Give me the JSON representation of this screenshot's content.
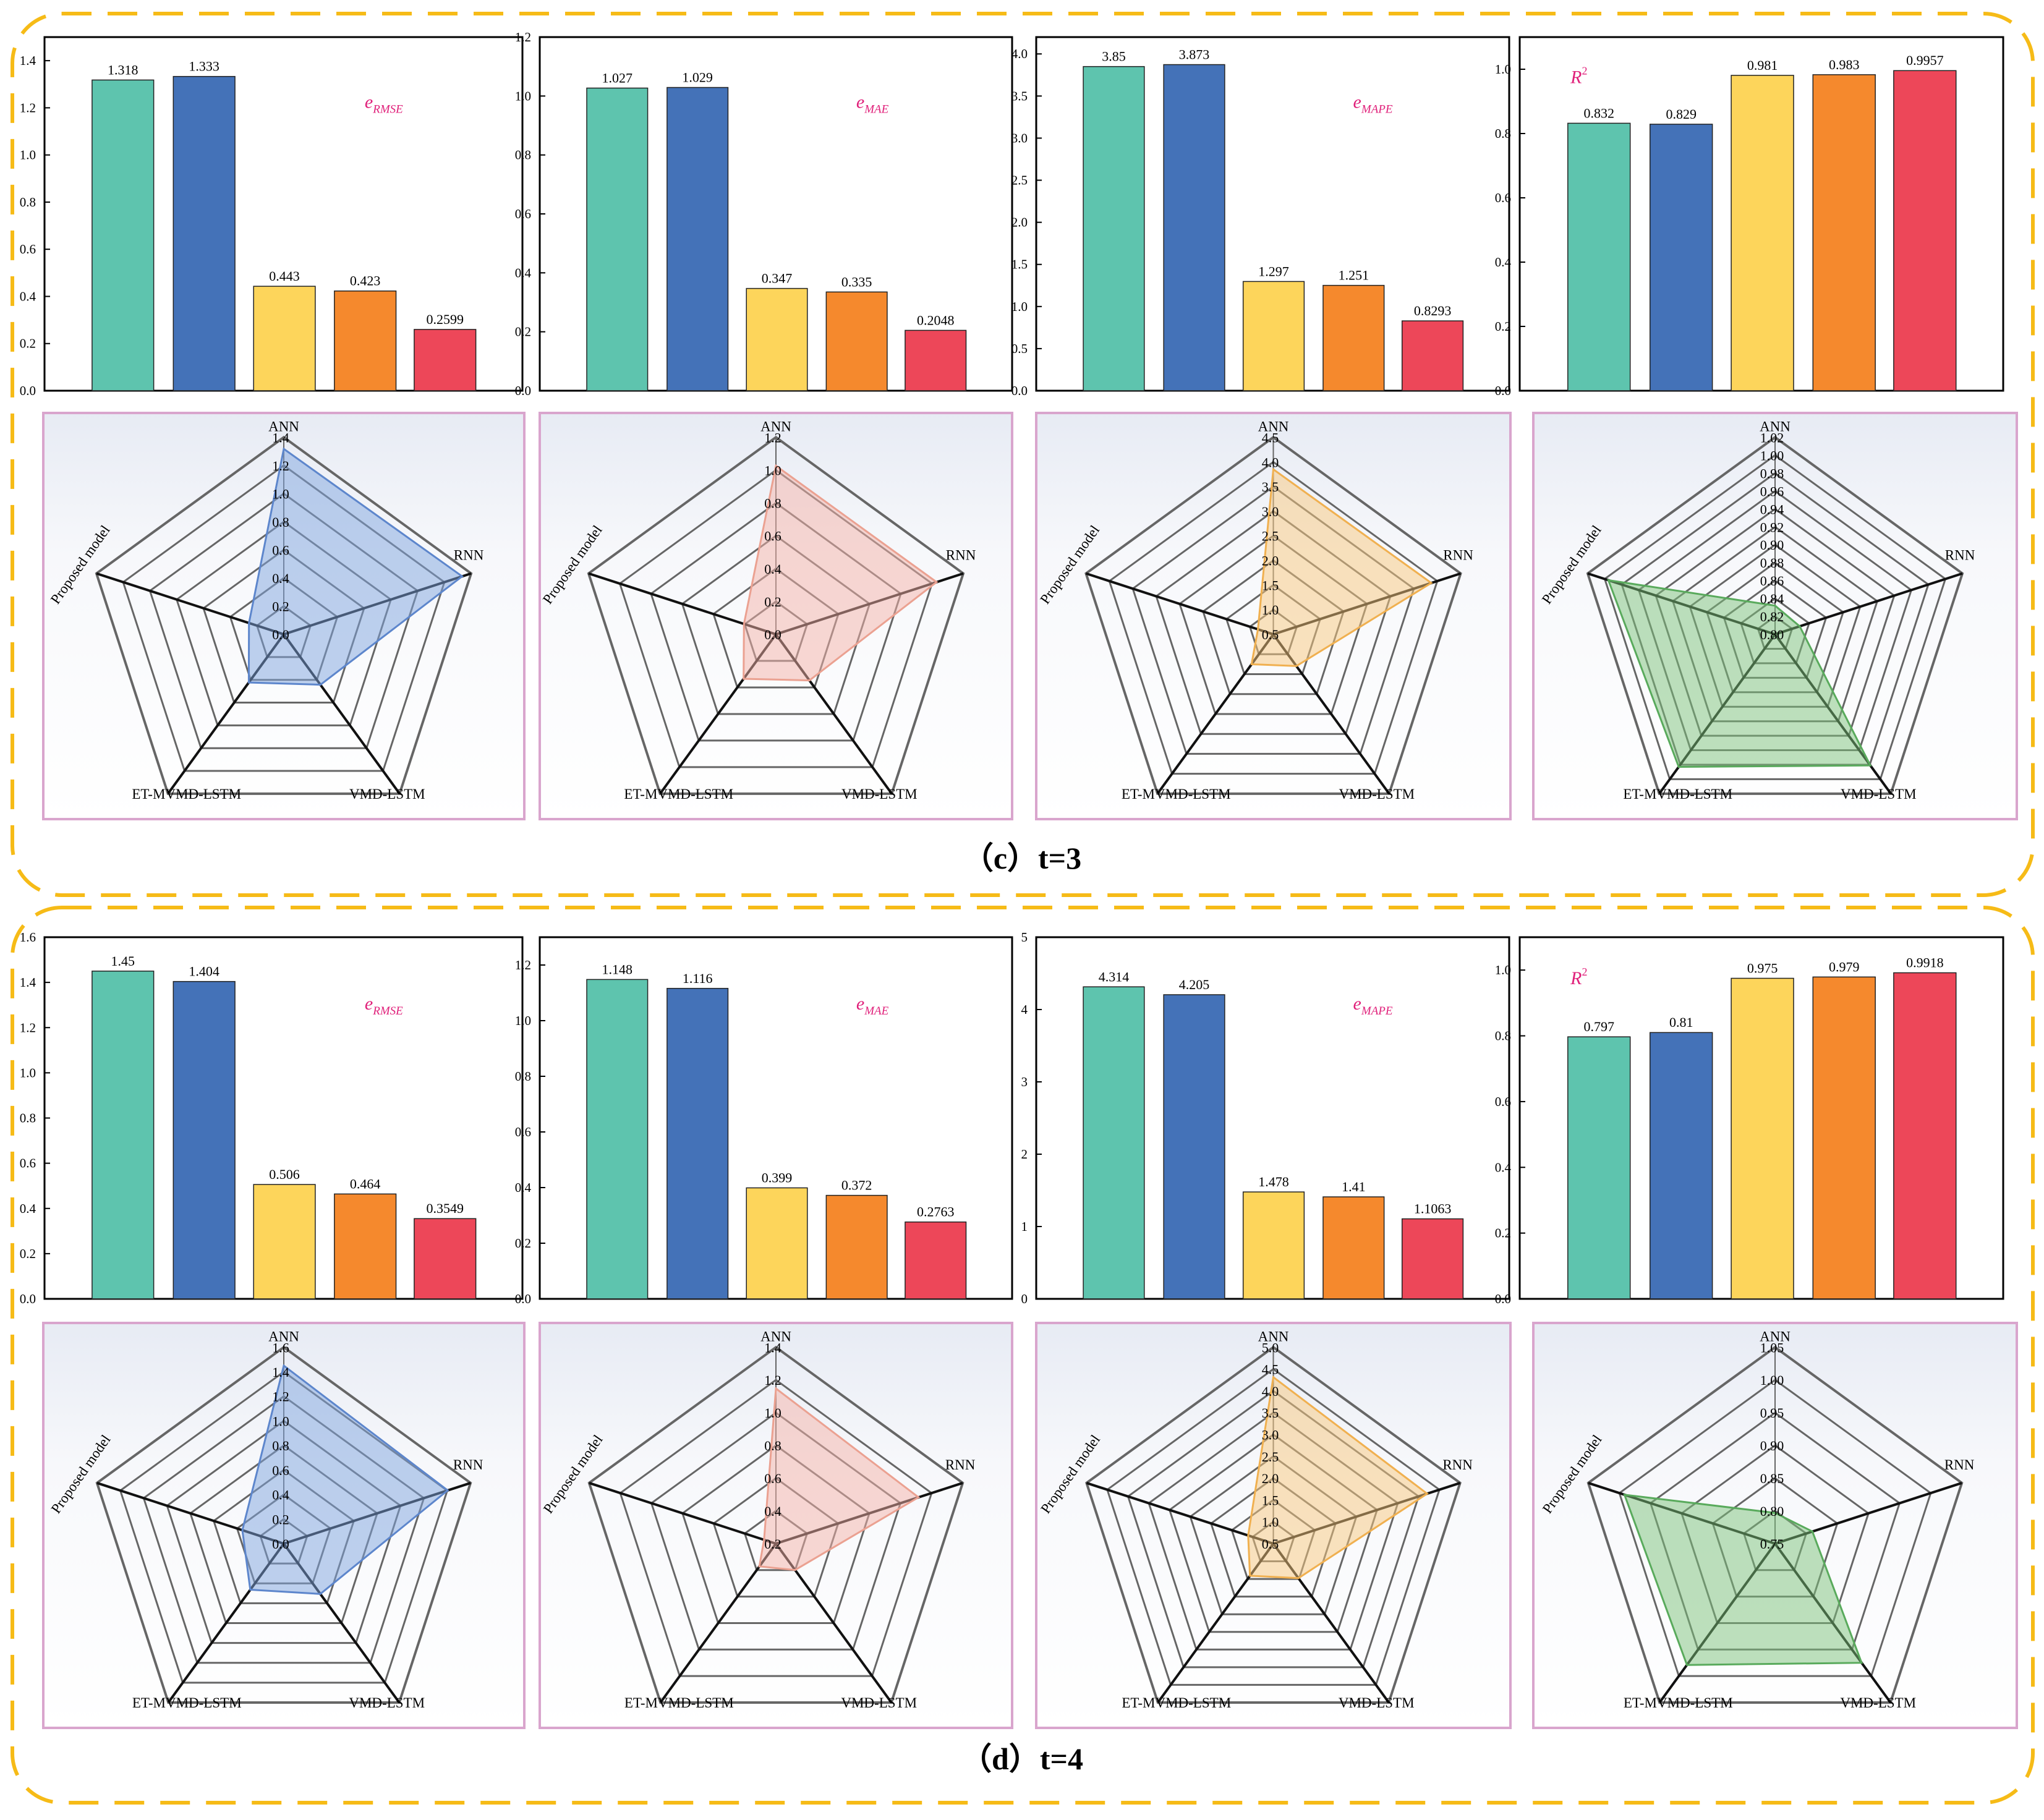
{
  "labels": {
    "metrics": {
      "rmse": "RMSE",
      "mae": "MAE",
      "mape": "MAPE"
    },
    "e": "e",
    "r": "R",
    "sup": "2",
    "models": [
      "ANN",
      "RNN",
      "VMD-LSTM",
      "ET-MVMD-LSTM",
      "Proposed model"
    ]
  },
  "colors": {
    "bars": [
      "#5ec4ae",
      "#4472b8",
      "#fdd55b",
      "#f5892d",
      "#ed4759"
    ],
    "radar_fill": [
      "#7da3dd",
      "#f3b2a7",
      "#f8c77d",
      "#7bc27a"
    ],
    "radar_line": [
      "#5d86cc",
      "#eba191",
      "#f0b050",
      "#59aa5c"
    ],
    "metric_text": "#e0207a",
    "group_border": "#f6bb17",
    "panel_border": "#d9a5cd"
  },
  "groups": [
    {
      "caption": "（c）t=3",
      "charts": [
        {
          "type": "bar",
          "metric": "rmse",
          "title": "eRMSE",
          "ylim": [
            0,
            1.5
          ],
          "yticks": [
            "0.0",
            "0.2",
            "0.4",
            "0.6",
            "0.8",
            "1.0",
            "1.2",
            "1.4"
          ],
          "values": [
            1.318,
            1.333,
            0.443,
            0.423,
            0.2599
          ],
          "value_labels": [
            "1.318",
            "1.333",
            "0.443",
            "0.423",
            "0.2599"
          ],
          "radar": {
            "rmin": 0,
            "rmax": 1.4,
            "ticks": [
              "0.0",
              "0.2",
              "0.4",
              "0.6",
              "0.8",
              "1.0",
              "1.2",
              "1.4"
            ]
          }
        },
        {
          "type": "bar",
          "metric": "mae",
          "title": "eMAE",
          "ylim": [
            0,
            1.2
          ],
          "yticks": [
            "0.0",
            "0.2",
            "0.4",
            "0.6",
            "0.8",
            "1.0",
            "1.2"
          ],
          "values": [
            1.027,
            1.029,
            0.347,
            0.335,
            0.2048
          ],
          "value_labels": [
            "1.027",
            "1.029",
            "0.347",
            "0.335",
            "0.2048"
          ],
          "radar": {
            "rmin": 0,
            "rmax": 1.2,
            "ticks": [
              "0.0",
              "0.2",
              "0.4",
              "0.6",
              "0.8",
              "1.0",
              "1.2"
            ]
          }
        },
        {
          "type": "bar",
          "metric": "mape",
          "title": "eMAPE",
          "ylim": [
            0,
            4.2
          ],
          "yticks": [
            "0.0",
            "0.5",
            "1.0",
            "1.5",
            "2.0",
            "2.5",
            "3.0",
            "3.5",
            "4.0"
          ],
          "values": [
            3.85,
            3.873,
            1.297,
            1.251,
            0.8293
          ],
          "value_labels": [
            "3.85",
            "3.873",
            "1.297",
            "1.251",
            "0.8293"
          ],
          "radar": {
            "rmin": 0.5,
            "rmax": 4.5,
            "ticks": [
              "0.5",
              "1.0",
              "1.5",
              "2.0",
              "2.5",
              "3.0",
              "3.5",
              "4.0",
              "4.5"
            ]
          }
        },
        {
          "type": "bar",
          "metric": "r2",
          "title": "R2",
          "ylim": [
            0,
            1.1
          ],
          "yticks": [
            "0.0",
            "0.2",
            "0.4",
            "0.6",
            "0.8",
            "1.0"
          ],
          "values": [
            0.832,
            0.829,
            0.981,
            0.983,
            0.9957
          ],
          "value_labels": [
            "0.832",
            "0.829",
            "0.981",
            "0.983",
            "0.9957"
          ],
          "radar": {
            "rmin": 0.8,
            "rmax": 1.02,
            "ticks": [
              "0.80",
              "0.82",
              "0.84",
              "0.86",
              "0.88",
              "0.90",
              "0.92",
              "0.94",
              "0.96",
              "0.98",
              "1.00",
              "1.02"
            ]
          }
        }
      ]
    },
    {
      "caption": "（d）t=4",
      "charts": [
        {
          "type": "bar",
          "metric": "rmse",
          "title": "eRMSE",
          "ylim": [
            0,
            1.6
          ],
          "yticks": [
            "0.0",
            "0.2",
            "0.4",
            "0.6",
            "0.8",
            "1.0",
            "1.2",
            "1.4",
            "1.6"
          ],
          "values": [
            1.45,
            1.404,
            0.506,
            0.464,
            0.3549
          ],
          "value_labels": [
            "1.45",
            "1.404",
            "0.506",
            "0.464",
            "0.3549"
          ],
          "radar": {
            "rmin": 0,
            "rmax": 1.6,
            "ticks": [
              "0.0",
              "0.2",
              "0.4",
              "0.6",
              "0.8",
              "1.0",
              "1.2",
              "1.4",
              "1.6"
            ]
          }
        },
        {
          "type": "bar",
          "metric": "mae",
          "title": "eMAE",
          "ylim": [
            0,
            1.3
          ],
          "yticks": [
            "0.0",
            "0.2",
            "0.4",
            "0.6",
            "0.8",
            "1.0",
            "1.2"
          ],
          "values": [
            1.148,
            1.116,
            0.399,
            0.372,
            0.2763
          ],
          "value_labels": [
            "1.148",
            "1.116",
            "0.399",
            "0.372",
            "0.2763"
          ],
          "radar": {
            "rmin": 0.2,
            "rmax": 1.4,
            "ticks": [
              "0.2",
              "0.4",
              "0.6",
              "0.8",
              "1.0",
              "1.2",
              "1.4"
            ]
          }
        },
        {
          "type": "bar",
          "metric": "mape",
          "title": "eMAPE",
          "ylim": [
            0,
            5
          ],
          "yticks": [
            "0",
            "1",
            "2",
            "3",
            "4",
            "5"
          ],
          "values": [
            4.314,
            4.205,
            1.478,
            1.41,
            1.1063
          ],
          "value_labels": [
            "4.314",
            "4.205",
            "1.478",
            "1.41",
            "1.1063"
          ],
          "radar": {
            "rmin": 0.5,
            "rmax": 5.0,
            "ticks": [
              "0.5",
              "1.0",
              "1.5",
              "2.0",
              "2.5",
              "3.0",
              "3.5",
              "4.0",
              "4.5",
              "5.0"
            ]
          }
        },
        {
          "type": "bar",
          "metric": "r2",
          "title": "R2",
          "ylim": [
            0,
            1.1
          ],
          "yticks": [
            "0.0",
            "0.2",
            "0.4",
            "0.6",
            "0.8",
            "1.0"
          ],
          "values": [
            0.797,
            0.81,
            0.975,
            0.979,
            0.9918
          ],
          "value_labels": [
            "0.797",
            "0.81",
            "0.975",
            "0.979",
            "0.9918"
          ],
          "radar": {
            "rmin": 0.75,
            "rmax": 1.05,
            "ticks": [
              "0.75",
              "0.80",
              "0.85",
              "0.90",
              "0.95",
              "1.00",
              "1.05"
            ]
          }
        }
      ]
    }
  ]
}
